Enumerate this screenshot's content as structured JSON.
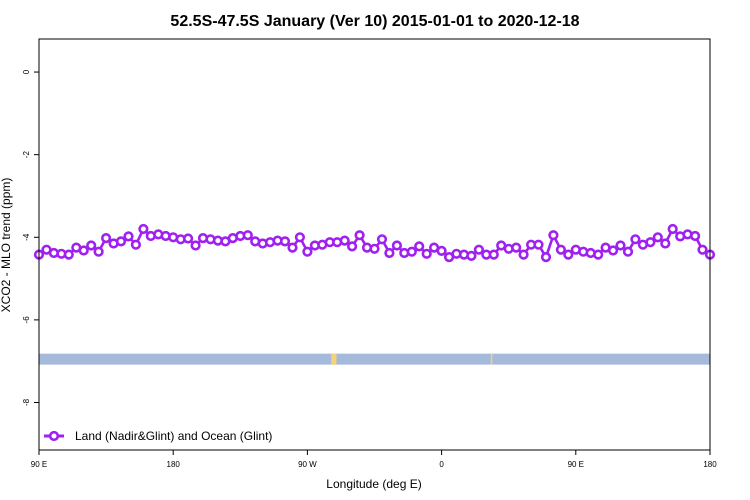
{
  "chart_data": {
    "type": "line",
    "title": "52.5S-47.5S January (Ver 10)   2015-01-01 to 2020-12-18",
    "xlabel": "Longitude (deg E)",
    "ylabel": "XCO2 - MLO trend (ppm)",
    "xlim": [
      90,
      540
    ],
    "ylim": [
      -9.15,
      0.8
    ],
    "x_ticks": [
      {
        "value": 90,
        "label": "90 E"
      },
      {
        "value": 180,
        "label": "180"
      },
      {
        "value": 270,
        "label": "90 W"
      },
      {
        "value": 360,
        "label": "0"
      },
      {
        "value": 450,
        "label": "90 E"
      },
      {
        "value": 540,
        "label": "180"
      }
    ],
    "y_ticks": [
      {
        "value": 0,
        "label": "0"
      },
      {
        "value": -2,
        "label": "-2"
      },
      {
        "value": -4,
        "label": "-4"
      },
      {
        "value": -6,
        "label": "-6"
      },
      {
        "value": -8,
        "label": "-8"
      }
    ],
    "grid": false,
    "legend_position": "bottom-left",
    "series": [
      {
        "name": "Land (Nadir&Glint) and Ocean (Glint)",
        "color": "#a020f0",
        "x": [
          90,
          95,
          100,
          105,
          110,
          115,
          120,
          125,
          130,
          135,
          140,
          145,
          150,
          155,
          160,
          165,
          170,
          175,
          180,
          185,
          190,
          195,
          200,
          205,
          210,
          215,
          220,
          225,
          230,
          235,
          240,
          245,
          250,
          255,
          260,
          265,
          270,
          275,
          280,
          285,
          290,
          295,
          300,
          305,
          310,
          315,
          320,
          325,
          330,
          335,
          340,
          345,
          350,
          355,
          360,
          365,
          370,
          375,
          380,
          385,
          390,
          395,
          400,
          405,
          410,
          415,
          420,
          425,
          430,
          435,
          440,
          445,
          450,
          455,
          460,
          465,
          470,
          475,
          480,
          485,
          490,
          495,
          500,
          505,
          510,
          515,
          520,
          525,
          530,
          535,
          540
        ],
        "y": [
          -4.42,
          -4.3,
          -4.38,
          -4.4,
          -4.42,
          -4.25,
          -4.32,
          -4.2,
          -4.35,
          -4.02,
          -4.15,
          -4.1,
          -3.98,
          -4.18,
          -3.8,
          -3.97,
          -3.93,
          -3.97,
          -4.0,
          -4.05,
          -4.03,
          -4.2,
          -4.02,
          -4.05,
          -4.08,
          -4.1,
          -4.02,
          -3.97,
          -3.95,
          -4.1,
          -4.15,
          -4.12,
          -4.08,
          -4.1,
          -4.25,
          -4.0,
          -4.35,
          -4.2,
          -4.18,
          -4.12,
          -4.12,
          -4.08,
          -4.22,
          -3.95,
          -4.25,
          -4.28,
          -4.05,
          -4.38,
          -4.2,
          -4.38,
          -4.35,
          -4.22,
          -4.4,
          -4.25,
          -4.33,
          -4.48,
          -4.4,
          -4.42,
          -4.45,
          -4.3,
          -4.42,
          -4.42,
          -4.2,
          -4.28,
          -4.25,
          -4.42,
          -4.18,
          -4.18,
          -4.48,
          -3.95,
          -4.3,
          -4.42,
          -4.3,
          -4.35,
          -4.38,
          -4.42,
          -4.25,
          -4.32,
          -4.2,
          -4.35,
          -4.05,
          -4.18,
          -4.12,
          -4.0,
          -4.15,
          -3.8,
          -3.98,
          -3.93,
          -3.97,
          -4.3,
          -4.42
        ]
      }
    ],
    "land_ocean_band": {
      "y": -6.95,
      "ocean_color": "#a5b9db",
      "land_color": "#f5d17a",
      "land_segments": [
        [
          286,
          289.5
        ],
        [
          393,
          394
        ]
      ]
    }
  }
}
